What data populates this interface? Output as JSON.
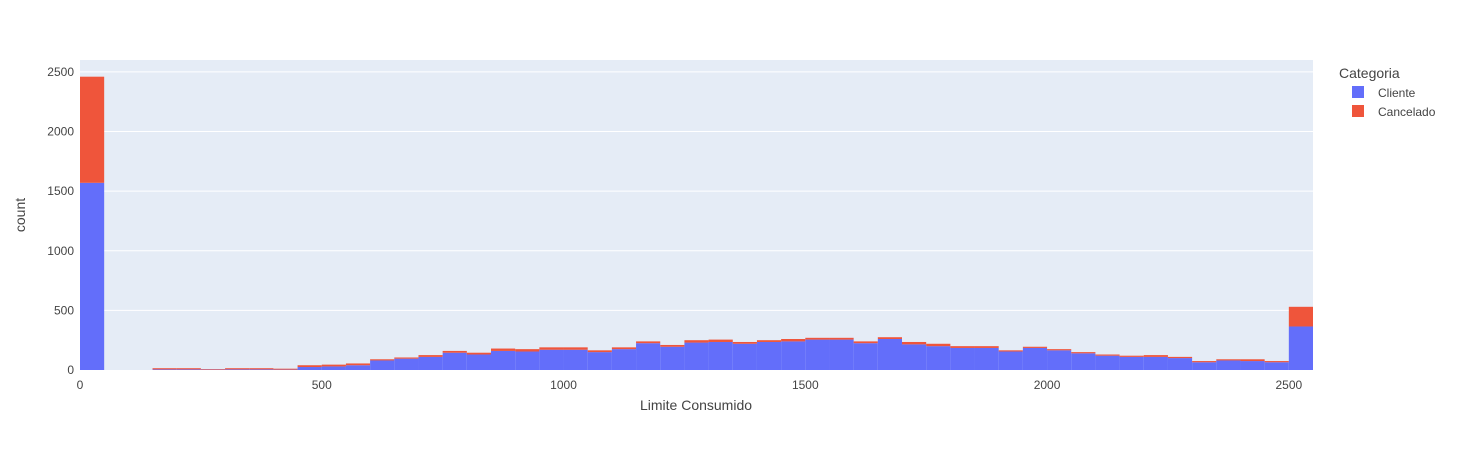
{
  "chart_data": {
    "type": "bar",
    "stacked": true,
    "xlabel": "Limite Consumido",
    "ylabel": "count",
    "xlim": [
      0,
      2550
    ],
    "ylim": [
      0,
      2600
    ],
    "x_ticks": [
      "0",
      "500",
      "1000",
      "1500",
      "2000",
      "2500"
    ],
    "x_tick_values": [
      0,
      500,
      1000,
      1500,
      2000,
      2500
    ],
    "y_ticks": [
      "0",
      "500",
      "1000",
      "1500",
      "2000",
      "2500"
    ],
    "y_tick_values": [
      0,
      500,
      1000,
      1500,
      2000,
      2500
    ],
    "bin_width": 50,
    "bin_starts": [
      0,
      150,
      200,
      250,
      300,
      350,
      400,
      450,
      500,
      550,
      600,
      650,
      700,
      750,
      800,
      850,
      900,
      950,
      1000,
      1050,
      1100,
      1150,
      1200,
      1250,
      1300,
      1350,
      1400,
      1450,
      1500,
      1550,
      1600,
      1650,
      1700,
      1750,
      1800,
      1850,
      1900,
      1950,
      2000,
      2050,
      2100,
      2150,
      2200,
      2250,
      2300,
      2350,
      2400,
      2450,
      2500
    ],
    "grid": true,
    "legend_title": "Categoria",
    "legend_position": "right",
    "series": [
      {
        "name": "Cliente",
        "color": "#636efa",
        "values": [
          1570,
          5,
          5,
          3,
          5,
          5,
          3,
          25,
          30,
          40,
          80,
          95,
          110,
          145,
          130,
          160,
          155,
          170,
          170,
          150,
          175,
          225,
          195,
          230,
          235,
          220,
          235,
          240,
          255,
          255,
          225,
          260,
          215,
          200,
          185,
          185,
          155,
          185,
          165,
          140,
          120,
          110,
          110,
          100,
          65,
          80,
          75,
          65,
          365
        ]
      },
      {
        "name": "Cancelado",
        "color": "#ef553b",
        "values": [
          890,
          10,
          10,
          5,
          10,
          10,
          8,
          15,
          15,
          15,
          10,
          10,
          15,
          15,
          15,
          20,
          20,
          20,
          20,
          15,
          15,
          15,
          15,
          20,
          20,
          15,
          15,
          20,
          15,
          15,
          15,
          15,
          20,
          20,
          15,
          15,
          10,
          10,
          10,
          10,
          10,
          10,
          15,
          10,
          10,
          10,
          15,
          10,
          165
        ]
      }
    ]
  }
}
